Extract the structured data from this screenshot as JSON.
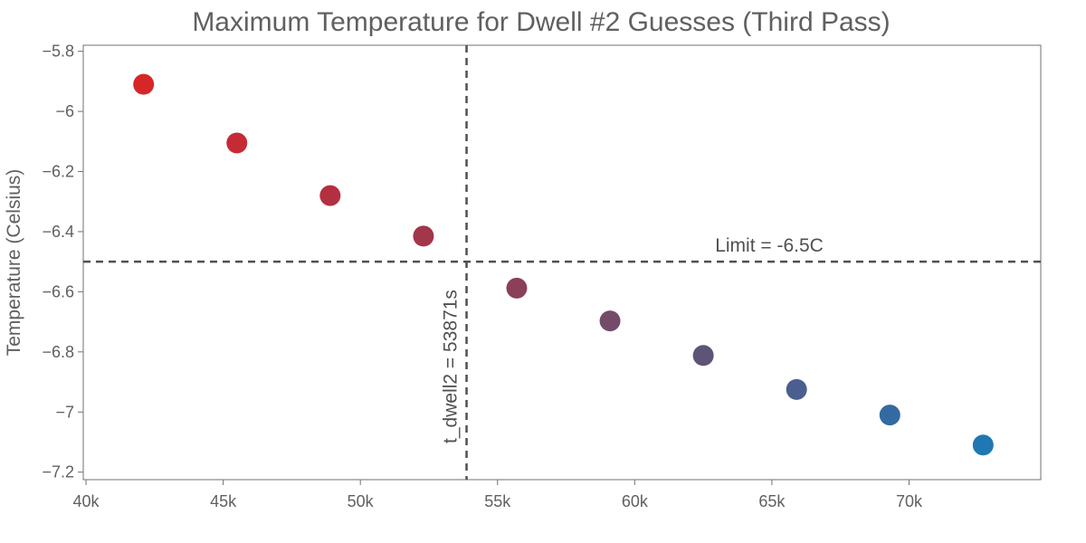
{
  "chart_data": {
    "type": "scatter",
    "title": "Maximum Temperature for Dwell #2 Guesses (Third Pass)",
    "xlabel": "",
    "ylabel": "Temperature (Celsius)",
    "xlim": [
      39900,
      74800
    ],
    "ylim": [
      -7.225,
      -5.78
    ],
    "x_ticks": [
      40000,
      45000,
      50000,
      55000,
      60000,
      65000,
      70000
    ],
    "x_tick_labels": [
      "40k",
      "45k",
      "50k",
      "55k",
      "60k",
      "65k",
      "70k"
    ],
    "y_ticks": [
      -5.8,
      -6,
      -6.2,
      -6.4,
      -6.6,
      -6.8,
      -7,
      -7.2
    ],
    "y_tick_labels": [
      "−5.8",
      "−6",
      "−6.2",
      "−6.4",
      "−6.6",
      "−6.8",
      "−7",
      "−7.2"
    ],
    "grid": false,
    "points": [
      {
        "x": 42100,
        "y": -5.91,
        "color": "#d62728"
      },
      {
        "x": 45500,
        "y": -6.105,
        "color": "#c52b35"
      },
      {
        "x": 48900,
        "y": -6.28,
        "color": "#b33040"
      },
      {
        "x": 52300,
        "y": -6.415,
        "color": "#a2364b"
      },
      {
        "x": 55700,
        "y": -6.588,
        "color": "#8a4059"
      },
      {
        "x": 59100,
        "y": -6.697,
        "color": "#744c6a"
      },
      {
        "x": 62500,
        "y": -6.812,
        "color": "#5d5477"
      },
      {
        "x": 65900,
        "y": -6.925,
        "color": "#4a5f8f"
      },
      {
        "x": 69300,
        "y": -7.01,
        "color": "#336aa1"
      },
      {
        "x": 72700,
        "y": -7.11,
        "color": "#1f77b4"
      }
    ],
    "hline": {
      "y": -6.5,
      "label": "Limit = -6.5C"
    },
    "vline": {
      "x": 53871,
      "label": "t_dwell2 = 53871s"
    }
  }
}
